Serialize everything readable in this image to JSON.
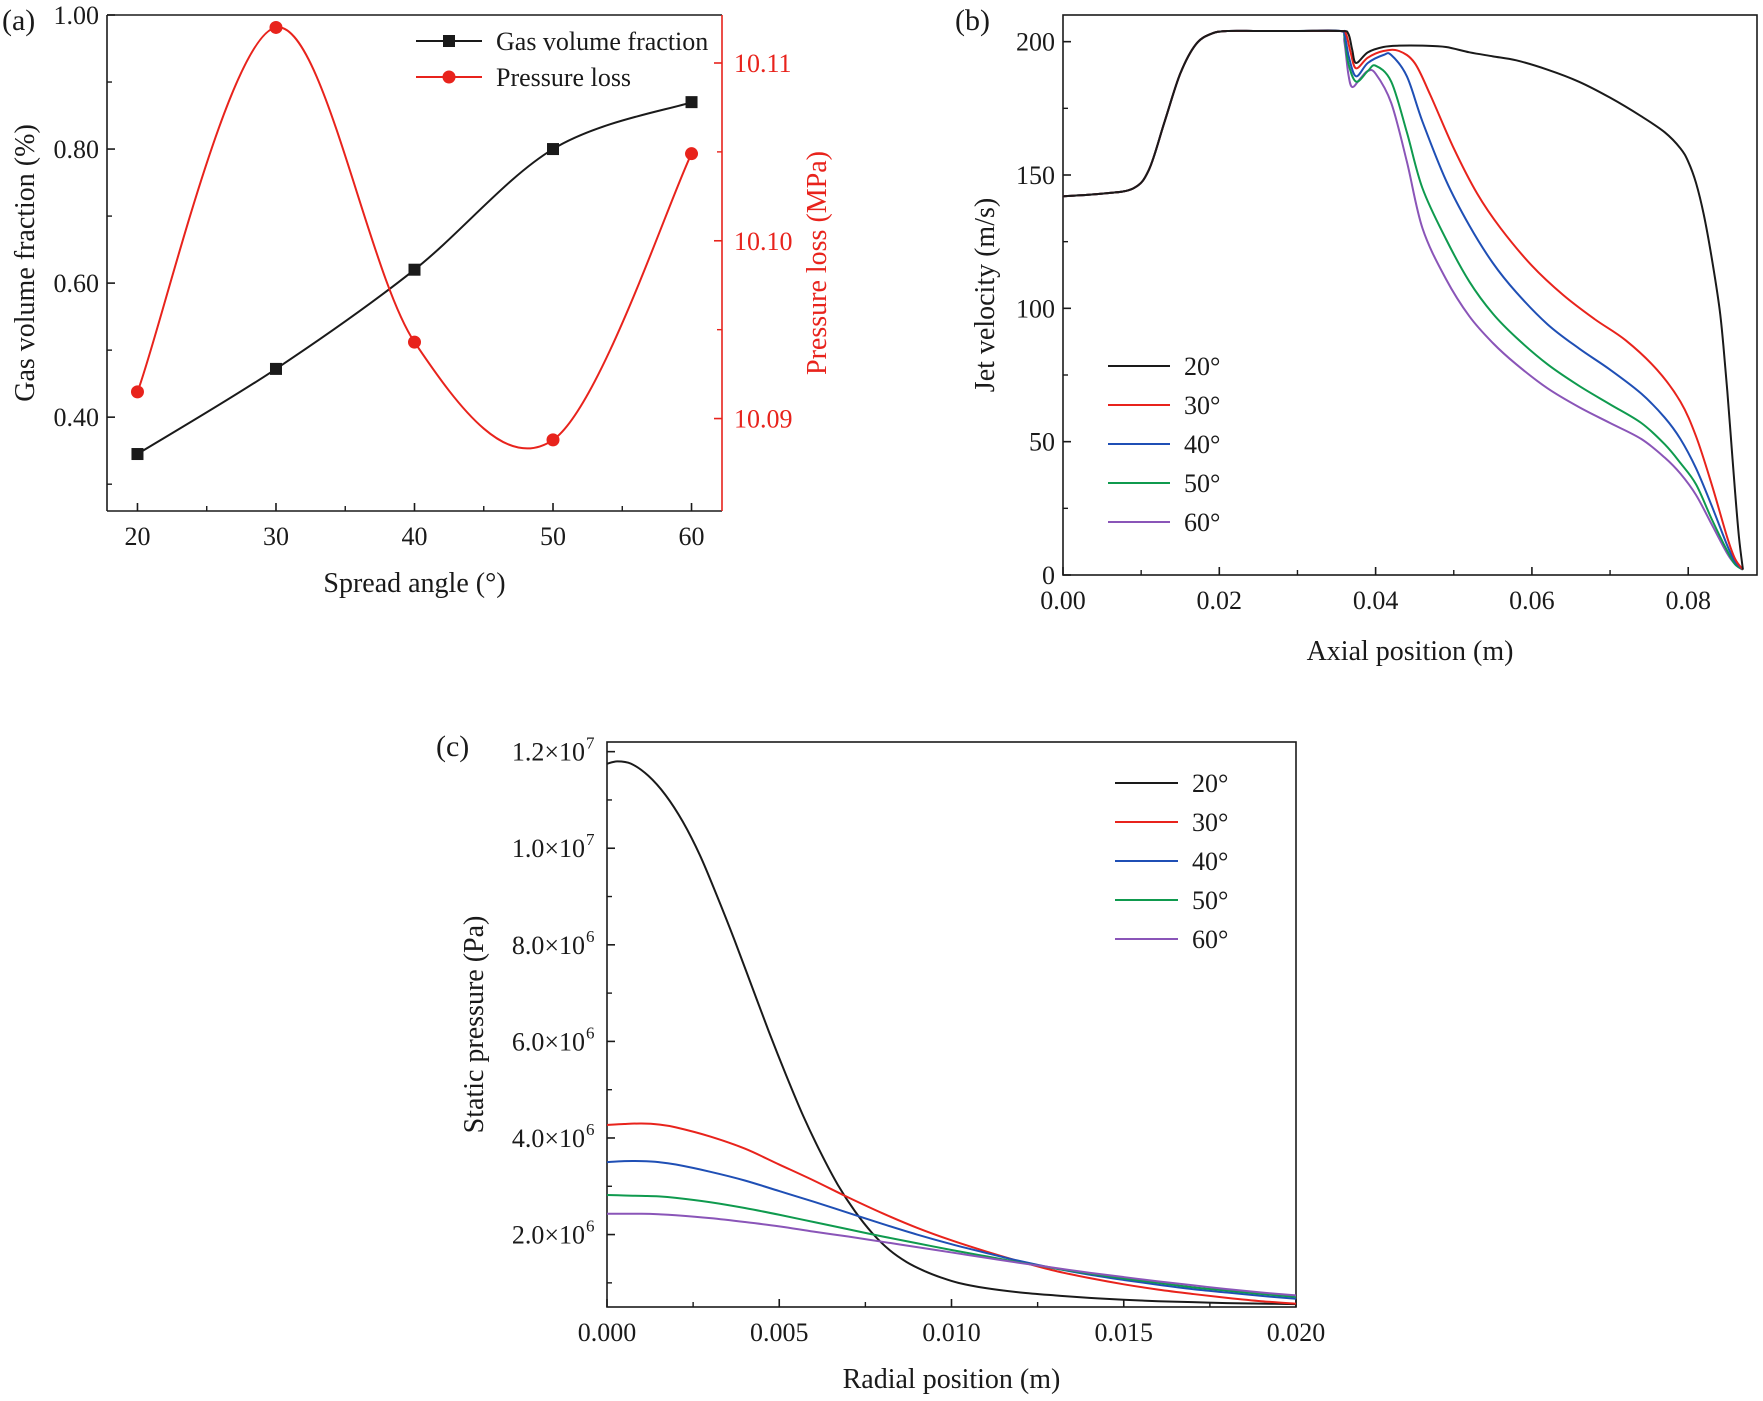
{
  "colors": {
    "black": "#1a1a1a",
    "red": "#e8231c",
    "blue": "#1f4fb5",
    "green": "#0f9a4e",
    "purple": "#8a55b8"
  },
  "chart_data": [
    {
      "panel": "(a)",
      "type": "line",
      "xlabel": "Spread angle (°)",
      "ylabel": "Gas volume fraction (%)",
      "ylabel_right": "Pressure loss (MPa)",
      "x_ticks": [
        "20",
        "30",
        "40",
        "50",
        "60"
      ],
      "y_ticks": [
        "0.40",
        "0.60",
        "0.80",
        "1.00"
      ],
      "y2_ticks": [
        "10.09",
        "10.10",
        "10.11"
      ],
      "xlim": [
        17.8,
        62.2
      ],
      "ylim": [
        0.26,
        1.0
      ],
      "y2lim": [
        10.0848,
        10.1127
      ],
      "series": [
        {
          "name": "Gas volume fraction",
          "axis": "left",
          "color": "#1a1a1a",
          "marker": "square",
          "x": [
            20,
            30,
            40,
            50,
            60
          ],
          "y": [
            0.345,
            0.472,
            0.62,
            0.8,
            0.87
          ]
        },
        {
          "name": "Pressure loss",
          "axis": "right",
          "color": "#e8231c",
          "marker": "circle",
          "x": [
            20,
            30,
            40,
            50,
            60
          ],
          "y": [
            10.0915,
            10.112,
            10.0943,
            10.0888,
            10.1049
          ]
        }
      ]
    },
    {
      "panel": "(b)",
      "type": "line",
      "xlabel": "Axial position (m)",
      "ylabel": "Jet velocity (m/s)",
      "x_ticks": [
        "0.00",
        "0.02",
        "0.04",
        "0.06",
        "0.08"
      ],
      "y_ticks": [
        "0",
        "50",
        "100",
        "150",
        "200"
      ],
      "xlim": [
        0,
        0.0888
      ],
      "ylim": [
        0,
        210
      ],
      "series": [
        {
          "name": "20°",
          "color": "#1a1a1a",
          "x": [
            0,
            0.005,
            0.009,
            0.011,
            0.013,
            0.015,
            0.017,
            0.019,
            0.021,
            0.025,
            0.03,
            0.0355,
            0.0365,
            0.037,
            0.0375,
            0.039,
            0.041,
            0.043,
            0.046,
            0.049,
            0.052,
            0.055,
            0.058,
            0.062,
            0.066,
            0.07,
            0.074,
            0.077,
            0.079,
            0.08,
            0.081,
            0.082,
            0.083,
            0.084,
            0.0845,
            0.085,
            0.0855,
            0.086,
            0.0865,
            0.087
          ],
          "y": [
            142,
            143,
            145,
            152,
            170,
            188,
            199,
            203,
            204,
            204,
            204,
            204,
            203,
            197,
            192,
            196,
            198,
            198.5,
            198.5,
            198,
            196,
            194.5,
            193,
            189.5,
            185,
            179,
            172,
            166,
            160,
            155,
            147,
            135,
            119,
            100,
            86,
            69,
            50,
            31,
            14,
            2
          ]
        },
        {
          "name": "30°",
          "color": "#e8231c",
          "x": [
            0,
            0.005,
            0.009,
            0.011,
            0.013,
            0.015,
            0.017,
            0.019,
            0.021,
            0.025,
            0.03,
            0.0355,
            0.0362,
            0.0368,
            0.0375,
            0.039,
            0.041,
            0.043,
            0.045,
            0.047,
            0.05,
            0.053,
            0.056,
            0.06,
            0.064,
            0.068,
            0.072,
            0.076,
            0.079,
            0.081,
            0.083,
            0.085,
            0.086,
            0.087
          ],
          "y": [
            142,
            143,
            145,
            152,
            170,
            188,
            199,
            203,
            204,
            204,
            204,
            204,
            203,
            196,
            190,
            194,
            196.5,
            196.5,
            192,
            180,
            160,
            143,
            130,
            116,
            105,
            96,
            88,
            77,
            65,
            52,
            34,
            14,
            6,
            2
          ]
        },
        {
          "name": "40°",
          "color": "#1f4fb5",
          "x": [
            0,
            0.005,
            0.009,
            0.011,
            0.013,
            0.015,
            0.017,
            0.019,
            0.021,
            0.025,
            0.03,
            0.0355,
            0.036,
            0.0366,
            0.0375,
            0.039,
            0.041,
            0.042,
            0.044,
            0.046,
            0.049,
            0.052,
            0.055,
            0.058,
            0.062,
            0.066,
            0.07,
            0.074,
            0.077,
            0.079,
            0.081,
            0.083,
            0.085,
            0.086,
            0.087
          ],
          "y": [
            142,
            143,
            145,
            152,
            170,
            188,
            199,
            203,
            204,
            204,
            204,
            204,
            203,
            194,
            187,
            192,
            195,
            195,
            187,
            170,
            148,
            131,
            117,
            106,
            94,
            85,
            77,
            68,
            59,
            51,
            40,
            26,
            11,
            5,
            2
          ]
        },
        {
          "name": "50°",
          "color": "#0f9a4e",
          "x": [
            0,
            0.005,
            0.009,
            0.011,
            0.013,
            0.015,
            0.017,
            0.019,
            0.021,
            0.025,
            0.03,
            0.0355,
            0.036,
            0.0365,
            0.0375,
            0.039,
            0.04,
            0.042,
            0.044,
            0.046,
            0.049,
            0.052,
            0.055,
            0.058,
            0.062,
            0.066,
            0.07,
            0.074,
            0.077,
            0.079,
            0.081,
            0.083,
            0.085,
            0.086,
            0.087
          ],
          "y": [
            142,
            143,
            145,
            152,
            170,
            188,
            199,
            203,
            204,
            204,
            204,
            204,
            202,
            192,
            185,
            189,
            191,
            185,
            166,
            145,
            126,
            110,
            98,
            89,
            79,
            71,
            64,
            57,
            49,
            42,
            34,
            21,
            9,
            4,
            2
          ]
        },
        {
          "name": "60°",
          "color": "#8a55b8",
          "x": [
            0,
            0.005,
            0.009,
            0.011,
            0.013,
            0.015,
            0.017,
            0.019,
            0.021,
            0.025,
            0.03,
            0.0355,
            0.036,
            0.0365,
            0.037,
            0.038,
            0.039,
            0.04,
            0.042,
            0.044,
            0.046,
            0.049,
            0.052,
            0.055,
            0.058,
            0.062,
            0.066,
            0.07,
            0.074,
            0.077,
            0.079,
            0.081,
            0.083,
            0.085,
            0.086,
            0.087
          ],
          "y": [
            142,
            143,
            145,
            152,
            170,
            188,
            199,
            203,
            204,
            204,
            204,
            204,
            200,
            188,
            183,
            186,
            189,
            188,
            177,
            155,
            130,
            111,
            97,
            87,
            79,
            70,
            63,
            57,
            51,
            44,
            38,
            30,
            19,
            8,
            4,
            2
          ]
        }
      ]
    },
    {
      "panel": "(c)",
      "type": "line",
      "xlabel": "Radial position (m)",
      "ylabel": "Static pressure (Pa)",
      "x_ticks": [
        "0.000",
        "0.005",
        "0.010",
        "0.015",
        "0.020"
      ],
      "y_ticks": [
        "2.0×10",
        "4.0×10",
        "6.0×10",
        "8.0×10",
        "1.0×10",
        "1.2×10"
      ],
      "y_tick_exponents": [
        "6",
        "6",
        "6",
        "6",
        "7",
        "7"
      ],
      "xlim": [
        0,
        0.02
      ],
      "ylim": [
        500000,
        12200000
      ],
      "series": [
        {
          "name": "20°",
          "color": "#1a1a1a",
          "x": [
            0,
            0.0003,
            0.0007,
            0.0012,
            0.0017,
            0.0022,
            0.0027,
            0.0032,
            0.0037,
            0.0042,
            0.0047,
            0.0052,
            0.0057,
            0.0062,
            0.0067,
            0.0072,
            0.0077,
            0.0082,
            0.0087,
            0.0092,
            0.0097,
            0.0102,
            0.011,
            0.012,
            0.013,
            0.014,
            0.015,
            0.016,
            0.017,
            0.018,
            0.019,
            0.02
          ],
          "y": [
            11750000,
            11800000,
            11750000,
            11500000,
            11100000,
            10550000,
            9850000,
            9000000,
            8100000,
            7150000,
            6200000,
            5300000,
            4450000,
            3700000,
            3030000,
            2480000,
            2030000,
            1680000,
            1430000,
            1250000,
            1110000,
            1000000,
            890000,
            800000,
            740000,
            690000,
            650000,
            620000,
            600000,
            580000,
            570000,
            560000
          ]
        },
        {
          "name": "30°",
          "color": "#e8231c",
          "x": [
            0,
            0.0005,
            0.001,
            0.0015,
            0.002,
            0.003,
            0.004,
            0.005,
            0.006,
            0.007,
            0.008,
            0.009,
            0.01,
            0.011,
            0.012,
            0.013,
            0.014,
            0.015,
            0.016,
            0.017,
            0.018,
            0.019,
            0.02
          ],
          "y": [
            4270000,
            4290000,
            4300000,
            4280000,
            4220000,
            4030000,
            3780000,
            3450000,
            3120000,
            2770000,
            2440000,
            2140000,
            1880000,
            1650000,
            1440000,
            1250000,
            1100000,
            970000,
            860000,
            770000,
            690000,
            620000,
            570000
          ]
        },
        {
          "name": "40°",
          "color": "#1f4fb5",
          "x": [
            0,
            0.0005,
            0.001,
            0.0015,
            0.002,
            0.003,
            0.004,
            0.005,
            0.006,
            0.007,
            0.008,
            0.009,
            0.01,
            0.011,
            0.012,
            0.013,
            0.014,
            0.015,
            0.016,
            0.017,
            0.018,
            0.019,
            0.02
          ],
          "y": [
            3500000,
            3520000,
            3520000,
            3500000,
            3450000,
            3300000,
            3120000,
            2900000,
            2680000,
            2450000,
            2220000,
            2000000,
            1800000,
            1620000,
            1450000,
            1300000,
            1170000,
            1060000,
            960000,
            870000,
            800000,
            730000,
            670000
          ]
        },
        {
          "name": "50°",
          "color": "#0f9a4e",
          "x": [
            0,
            0.0005,
            0.001,
            0.0015,
            0.002,
            0.003,
            0.004,
            0.005,
            0.006,
            0.007,
            0.008,
            0.009,
            0.01,
            0.011,
            0.012,
            0.013,
            0.014,
            0.015,
            0.016,
            0.017,
            0.018,
            0.019,
            0.02
          ],
          "y": [
            2820000,
            2810000,
            2800000,
            2790000,
            2760000,
            2670000,
            2550000,
            2410000,
            2260000,
            2110000,
            1960000,
            1820000,
            1680000,
            1550000,
            1420000,
            1300000,
            1190000,
            1090000,
            1000000,
            910000,
            840000,
            770000,
            710000
          ]
        },
        {
          "name": "60°",
          "color": "#8a55b8",
          "x": [
            0,
            0.0005,
            0.001,
            0.0015,
            0.002,
            0.003,
            0.004,
            0.005,
            0.006,
            0.007,
            0.008,
            0.009,
            0.01,
            0.011,
            0.012,
            0.013,
            0.014,
            0.015,
            0.016,
            0.017,
            0.018,
            0.019,
            0.02
          ],
          "y": [
            2430000,
            2430000,
            2430000,
            2420000,
            2400000,
            2340000,
            2260000,
            2170000,
            2060000,
            1960000,
            1850000,
            1740000,
            1630000,
            1520000,
            1410000,
            1310000,
            1210000,
            1120000,
            1030000,
            950000,
            870000,
            800000,
            740000
          ]
        }
      ]
    }
  ]
}
